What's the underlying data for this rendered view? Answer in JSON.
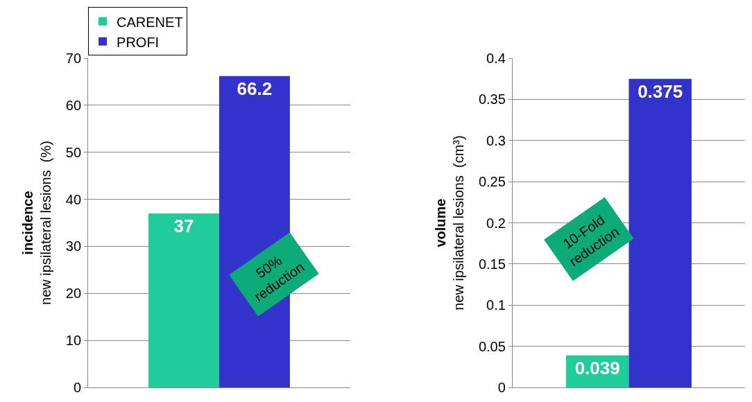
{
  "chart_data": [
    {
      "type": "bar",
      "categories": [
        null
      ],
      "ylabel": "incidence\nnew ipsilateral lesions  (%)",
      "ylim": [
        0,
        70
      ],
      "yticks": [
        0,
        10,
        20,
        30,
        40,
        50,
        60,
        70
      ],
      "grid": "y",
      "legend": "top left",
      "data_labels": true,
      "series": [
        {
          "name": "CARENET",
          "color": "#20cc99",
          "values": [
            37
          ]
        },
        {
          "name": "PROFI",
          "color": "#3333cc",
          "values": [
            66.2
          ]
        }
      ],
      "annotations": [
        "50%\nreduction"
      ]
    },
    {
      "type": "bar",
      "categories": [
        null
      ],
      "ylabel": "volume\nnew ipsilateral lesions  (cm³)",
      "ylim": [
        0,
        0.4
      ],
      "yticks": [
        0,
        0.05,
        0.1,
        0.15,
        0.2,
        0.25,
        0.3,
        0.35,
        0.4
      ],
      "grid": "y",
      "legend": false,
      "data_labels": true,
      "series": [
        {
          "color": "#20cc99",
          "values": [
            0.039
          ]
        },
        {
          "color": "#3333cc",
          "values": [
            0.375
          ]
        }
      ],
      "annotations": [
        "10-Fold\nreduction"
      ]
    }
  ]
}
